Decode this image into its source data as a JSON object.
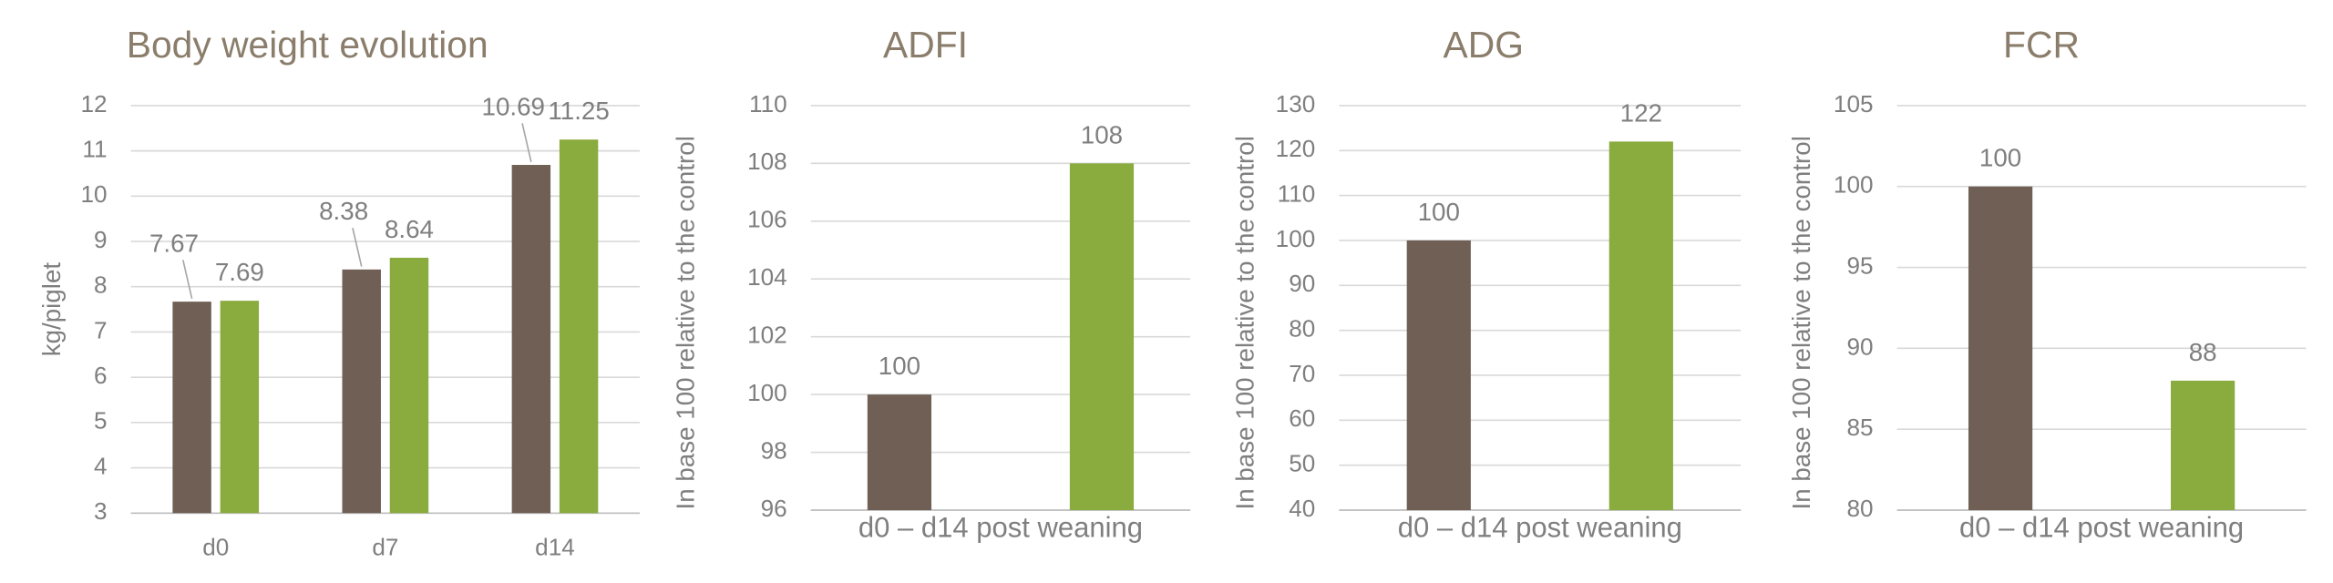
{
  "chart_data": [
    {
      "type": "bar",
      "title": "Body weight evolution",
      "y_label": "kg/piglet",
      "categories": [
        "d0",
        "d7",
        "d14"
      ],
      "series": [
        {
          "color": "#6f5f55",
          "values": [
            7.67,
            8.38,
            10.69
          ]
        },
        {
          "color": "#8aab3e",
          "values": [
            7.69,
            8.64,
            11.25
          ]
        }
      ],
      "ylim": [
        3,
        12
      ],
      "yticks": [
        3,
        4,
        5,
        6,
        7,
        8,
        9,
        10,
        11,
        12
      ],
      "grid": true
    },
    {
      "type": "bar",
      "title": "ADFI",
      "y_label": "In base 100 relative to the control",
      "categories": [
        "d0 – d14 post weaning"
      ],
      "series": [
        {
          "color": "#6f5f55",
          "values": [
            100
          ]
        },
        {
          "color": "#8aab3e",
          "values": [
            108
          ]
        }
      ],
      "ylim": [
        96,
        110
      ],
      "yticks": [
        96,
        98,
        100,
        102,
        104,
        106,
        108,
        110
      ],
      "grid": true
    },
    {
      "type": "bar",
      "title": "ADG",
      "y_label": "In base 100 relative to the control",
      "categories": [
        "d0 – d14 post weaning"
      ],
      "series": [
        {
          "color": "#6f5f55",
          "values": [
            100
          ]
        },
        {
          "color": "#8aab3e",
          "values": [
            122
          ]
        }
      ],
      "ylim": [
        40,
        130
      ],
      "yticks": [
        40,
        50,
        60,
        70,
        80,
        90,
        100,
        110,
        120,
        130
      ],
      "grid": true
    },
    {
      "type": "bar",
      "title": "FCR",
      "y_label": "In base 100 relative to the control",
      "categories": [
        "d0 – d14 post weaning"
      ],
      "series": [
        {
          "color": "#6f5f55",
          "values": [
            100
          ]
        },
        {
          "color": "#8aab3e",
          "values": [
            88
          ]
        }
      ],
      "ylim": [
        80,
        105
      ],
      "yticks": [
        80,
        85,
        90,
        95,
        100,
        105
      ],
      "grid": true
    }
  ]
}
